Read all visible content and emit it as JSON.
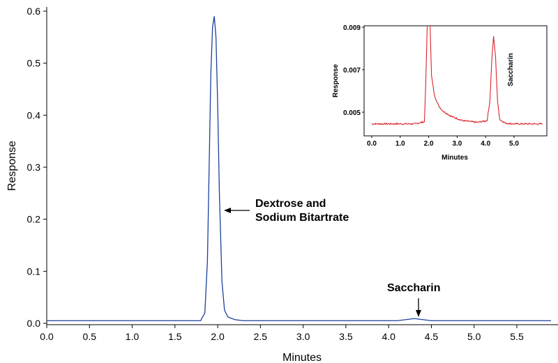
{
  "chart_data": [
    {
      "type": "line",
      "xlabel": "Minutes",
      "ylabel": "Response",
      "xlim": [
        0.0,
        5.9
      ],
      "ylim": [
        0.0,
        0.6
      ],
      "x_ticks": [
        "0.0",
        "0.5",
        "1.0",
        "1.5",
        "2.0",
        "2.5",
        "3.0",
        "3.5",
        "4.0",
        "4.5",
        "5.0",
        "5.5"
      ],
      "y_ticks": [
        "0.0",
        "0.1",
        "0.2",
        "0.3",
        "0.4",
        "0.5",
        "0.6"
      ],
      "series": [
        {
          "color": "#1a3f9c",
          "x": [
            0.0,
            1.8,
            1.85,
            1.88,
            1.9,
            1.92,
            1.94,
            1.96,
            1.98,
            2.0,
            2.02,
            2.05,
            2.08,
            2.12,
            2.2,
            2.3,
            4.1,
            4.2,
            4.3,
            4.4,
            4.5,
            5.9
          ],
          "y": [
            0.005,
            0.005,
            0.02,
            0.12,
            0.3,
            0.48,
            0.57,
            0.59,
            0.55,
            0.42,
            0.25,
            0.08,
            0.025,
            0.012,
            0.007,
            0.005,
            0.005,
            0.007,
            0.009,
            0.007,
            0.005,
            0.005
          ]
        }
      ],
      "annotations": [
        {
          "text_lines": [
            "Dextrose and",
            "Sodium Bitartrate"
          ],
          "arrow_to": [
            2.05,
            0.215
          ]
        },
        {
          "text": "Saccharin",
          "arrow_to": [
            4.3,
            0.012
          ]
        }
      ]
    },
    {
      "type": "line",
      "xlabel": "Minutes",
      "ylabel": "Response",
      "xlim": [
        0.0,
        6.0
      ],
      "ylim": [
        0.004,
        0.009
      ],
      "x_ticks": [
        "0.0",
        "1.0",
        "2.0",
        "3.0",
        "4.0",
        "5.0"
      ],
      "y_ticks": [
        "0.005",
        "0.007",
        "0.009"
      ],
      "series": [
        {
          "color": "#d9232a",
          "x": [
            0.0,
            1.5,
            1.85,
            1.9,
            1.95,
            2.0,
            2.05,
            2.1,
            2.2,
            2.35,
            2.5,
            2.8,
            3.2,
            3.7,
            4.05,
            4.15,
            4.22,
            4.28,
            4.35,
            4.42,
            4.5,
            4.7,
            5.0,
            6.0
          ],
          "y": [
            0.00445,
            0.00445,
            0.00455,
            0.0065,
            0.0091,
            0.0091,
            0.0091,
            0.0067,
            0.0058,
            0.0053,
            0.00505,
            0.0048,
            0.0046,
            0.00452,
            0.0046,
            0.0055,
            0.0075,
            0.00855,
            0.0076,
            0.0055,
            0.00465,
            0.00448,
            0.00445,
            0.00445
          ]
        }
      ],
      "annotations": [
        {
          "text": "Saccharin",
          "rotated": true
        }
      ]
    }
  ]
}
